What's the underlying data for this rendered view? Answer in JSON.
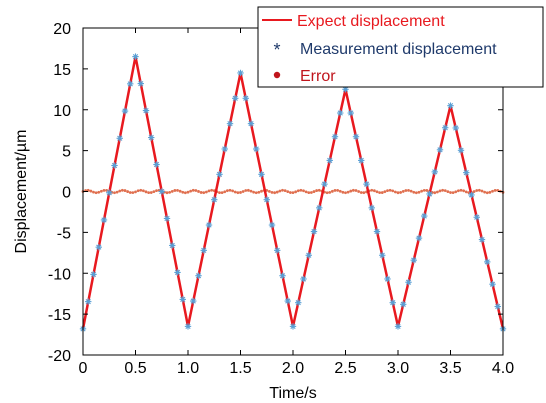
{
  "chart_data": {
    "type": "line",
    "title": "",
    "xlabel": "Time/s",
    "ylabel": "Displacement/µm",
    "xlim": [
      0,
      4.0
    ],
    "ylim": [
      -20,
      20
    ],
    "xticks": [
      0,
      0.5,
      1.0,
      1.5,
      2.0,
      2.5,
      3.0,
      3.5,
      4.0
    ],
    "xtick_labels": [
      "0",
      "0.5",
      "1.0",
      "1.5",
      "2.0",
      "2.5",
      "3.0",
      "3.5",
      "4.0"
    ],
    "yticks": [
      -20,
      -15,
      -10,
      -5,
      0,
      5,
      10,
      15,
      20
    ],
    "ytick_labels": [
      "-20",
      "-15",
      "-10",
      "-5",
      "0",
      "5",
      "10",
      "15",
      "20"
    ],
    "grid": false,
    "legend_position": "top-right",
    "series": [
      {
        "name": "Expect displacement",
        "style": "line",
        "color": "#e8191f",
        "x": [
          0,
          0.5,
          1.0,
          1.5,
          2.0,
          2.5,
          3.0,
          3.5,
          4.0
        ],
        "y": [
          -16.8,
          16.5,
          -16.5,
          14.5,
          -16.5,
          12.5,
          -16.5,
          10.5,
          -16.8
        ]
      },
      {
        "name": "Measurement displacement",
        "style": "asterisk",
        "color": "#5a9fd4",
        "sample_interval": 0.05,
        "x_range": [
          0,
          4.0
        ],
        "note_same_path_as": "Expect displacement"
      },
      {
        "name": "Error",
        "style": "dot",
        "color": "#e07050",
        "sample_interval": 0.025,
        "x_range": [
          0,
          4.0
        ],
        "values_approx": 0.0
      }
    ],
    "legend_entries": [
      "Expect displacement",
      "Measurement displacement",
      "Error"
    ],
    "legend_colors": {
      "Expect displacement": "#e8191f",
      "Measurement displacement": "#1f3a6b",
      "Error": "#c0151c"
    }
  }
}
